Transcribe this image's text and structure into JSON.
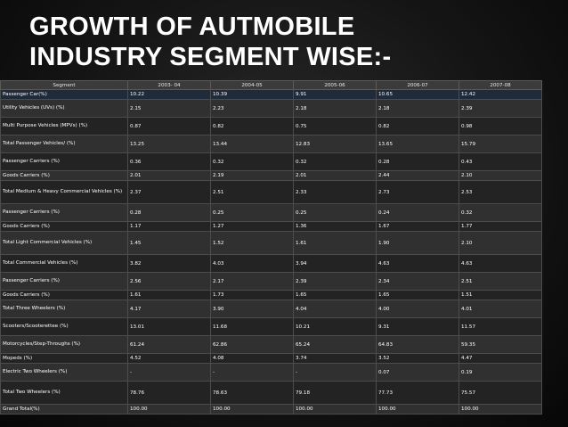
{
  "title_lines": [
    "GROWTH OF AUTMOBILE",
    "INDUSTRY SEGMENT WISE:-"
  ],
  "table": {
    "headers": [
      "Segment",
      "2003- 04",
      "2004-05",
      "2005-06",
      "2006-07",
      "2007-08"
    ],
    "rows": [
      {
        "label": "Passenger Car(%)",
        "values": [
          "10.22",
          "10.39",
          "9.91",
          "10.65",
          "12.42"
        ],
        "h": "s",
        "shade": "blue"
      },
      {
        "label": "Utility Vehicles (UVs) (%)",
        "values": [
          "2.15",
          "2.23",
          "2.18",
          "2.18",
          "2.39"
        ],
        "h": "m",
        "shade": "b"
      },
      {
        "label": "Multi Purpose Vehicles (MPVs) (%)",
        "values": [
          "0.87",
          "0.82",
          "0.75",
          "0.82",
          "0.98"
        ],
        "h": "m",
        "shade": "a"
      },
      {
        "label": "Total Passenger Vehicles/ (%)",
        "values": [
          "13.25",
          "13.44",
          "12.83",
          "13.65",
          "15.79"
        ],
        "h": "m",
        "shade": "b"
      },
      {
        "label": "Passenger Carriers (%)",
        "values": [
          "0.36",
          "0.32",
          "0.32",
          "0.28",
          "0.43"
        ],
        "h": "m",
        "shade": "a"
      },
      {
        "label": "Goods Carriers (%)",
        "values": [
          "2.01",
          "2.19",
          "2.01",
          "2.44",
          "2.10"
        ],
        "h": "s",
        "shade": "b"
      },
      {
        "label": "Total Medium & Heavy Commercial Vehicles (%)",
        "values": [
          "2.37",
          "2.51",
          "2.33",
          "2.73",
          "2.53"
        ],
        "h": "l",
        "shade": "a"
      },
      {
        "label": "Passenger Carriers (%)",
        "values": [
          "0.28",
          "0.25",
          "0.25",
          "0.24",
          "0.32"
        ],
        "h": "m",
        "shade": "b"
      },
      {
        "label": "Goods Carriers (%)",
        "values": [
          "1.17",
          "1.27",
          "1.36",
          "1.67",
          "1.77"
        ],
        "h": "s",
        "shade": "a"
      },
      {
        "label": "Total Light Commercial Vehicles (%)",
        "values": [
          "1.45",
          "1.52",
          "1.61",
          "1.90",
          "2.10"
        ],
        "h": "l",
        "shade": "b"
      },
      {
        "label": "Total Commercial Vehicles (%)",
        "values": [
          "3.82",
          "4.03",
          "3.94",
          "4.63",
          "4.63"
        ],
        "h": "m",
        "shade": "a"
      },
      {
        "label": "Passenger Carriers (%)",
        "values": [
          "2.56",
          "2.17",
          "2.39",
          "2.34",
          "2.51"
        ],
        "h": "m",
        "shade": "b"
      },
      {
        "label": "Goods Carriers (%)",
        "values": [
          "1.61",
          "1.73",
          "1.65",
          "1.65",
          "1.51"
        ],
        "h": "s",
        "shade": "a"
      },
      {
        "label": "Total Three Wheelers (%)",
        "values": [
          "4.17",
          "3.90",
          "4.04",
          "4.00",
          "4.01"
        ],
        "h": "m",
        "shade": "b"
      },
      {
        "label": "Scooters/Scooterettee (%)",
        "values": [
          "13.01",
          "11.68",
          "10.21",
          "9.31",
          "11.57"
        ],
        "h": "m",
        "shade": "a"
      },
      {
        "label": "Motorcycles/Step-Throughs (%)",
        "values": [
          "61.24",
          "62.86",
          "65.24",
          "64.83",
          "59.35"
        ],
        "h": "m",
        "shade": "b"
      },
      {
        "label": "Mopeds (%)",
        "values": [
          "4.52",
          "4.08",
          "3.74",
          "3.52",
          "4.47"
        ],
        "h": "s",
        "shade": "a"
      },
      {
        "label": "Electric Two Wheelers (%)",
        "values": [
          "-",
          "-",
          "-",
          "0.07",
          "0.19"
        ],
        "h": "m",
        "shade": "b"
      },
      {
        "label": "Total Two Wheelers (%)",
        "values": [
          "78.76",
          "78.63",
          "79.18",
          "77.73",
          "75.57"
        ],
        "h": "l",
        "shade": "a"
      },
      {
        "label": "Grand Total(%)",
        "values": [
          "100.00",
          "100.00",
          "100.00",
          "100.00",
          "100.00"
        ],
        "h": "s",
        "shade": "b"
      }
    ]
  }
}
